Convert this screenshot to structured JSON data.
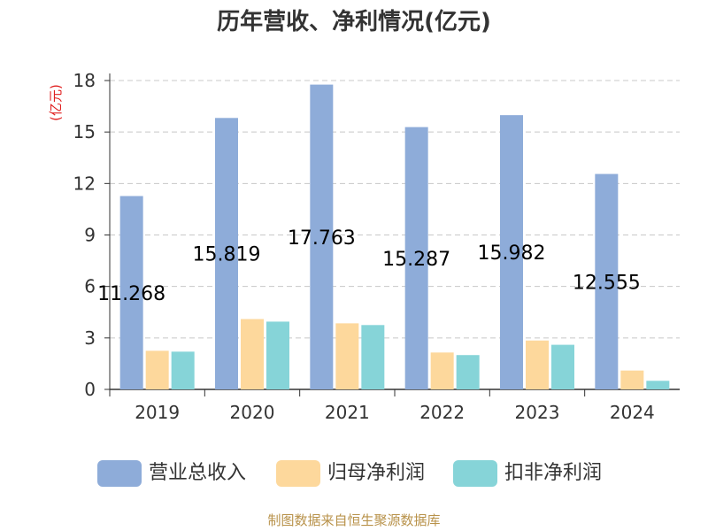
{
  "title": "历年营收、净利情况(亿元)",
  "footer": "制图数据来自恒生聚源数据库",
  "colors": {
    "revenue": "#8eacd9",
    "net_profit": "#fdd89c",
    "deducted_profit": "#86d4d8",
    "unit_label": "#e02020"
  },
  "chart_data": {
    "type": "bar",
    "title": "历年营收、净利情况(亿元)",
    "ylabel": "(亿元)",
    "xlabel": "",
    "categories": [
      "2019",
      "2020",
      "2021",
      "2022",
      "2023",
      "2024"
    ],
    "ylim": [
      0,
      18
    ],
    "yticks": [
      0,
      3,
      6,
      9,
      12,
      15,
      18
    ],
    "grid": true,
    "legend_position": "bottom",
    "series": [
      {
        "name": "营业总收入",
        "values": [
          11.268,
          15.819,
          17.763,
          15.287,
          15.982,
          12.555
        ],
        "data_labels": [
          "11.268",
          "15.819",
          "17.763",
          "15.287",
          "15.982",
          "12.555"
        ]
      },
      {
        "name": "归母净利润",
        "values": [
          2.25,
          4.1,
          3.85,
          2.15,
          2.85,
          1.1
        ]
      },
      {
        "name": "扣非净利润",
        "values": [
          2.2,
          3.95,
          3.75,
          2.0,
          2.6,
          0.5
        ]
      }
    ]
  }
}
